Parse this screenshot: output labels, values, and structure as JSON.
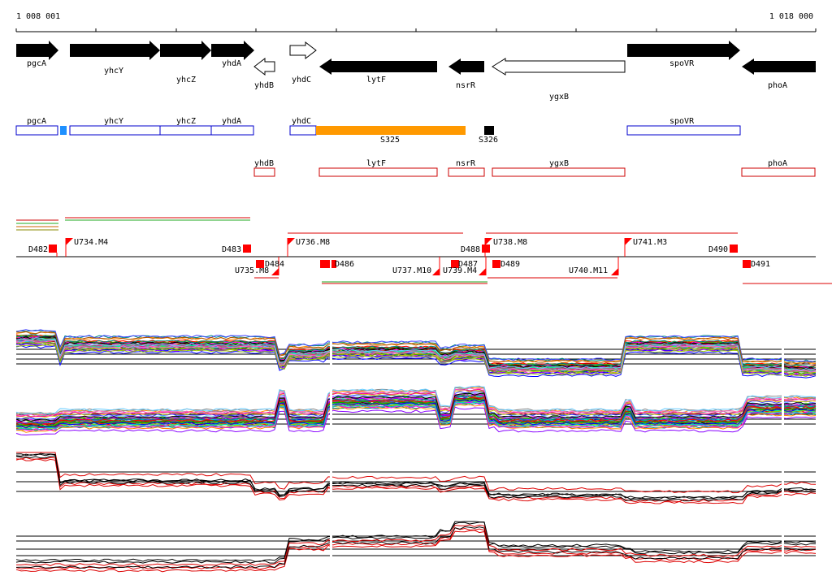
{
  "coordinates": {
    "start": "1 008 001",
    "end": "1 018 000"
  },
  "genes": [
    {
      "label": "pgcA",
      "dir": "fwd",
      "filled": true
    },
    {
      "label": "yhcY",
      "dir": "fwd",
      "filled": true
    },
    {
      "label": "yhcZ",
      "dir": "fwd",
      "filled": true
    },
    {
      "label": "yhdA",
      "dir": "fwd",
      "filled": true
    },
    {
      "label": "yhdB",
      "dir": "rev",
      "filled": false
    },
    {
      "label": "yhdC",
      "dir": "fwd",
      "filled": false
    },
    {
      "label": "lytF",
      "dir": "rev",
      "filled": true
    },
    {
      "label": "nsrR",
      "dir": "rev",
      "filled": true
    },
    {
      "label": "ygxB",
      "dir": "rev",
      "filled": false
    },
    {
      "label": "spoVR",
      "dir": "fwd",
      "filled": true
    },
    {
      "label": "phoA",
      "dir": "rev",
      "filled": true
    }
  ],
  "forward_annotations": [
    {
      "label": "pgcA"
    },
    {
      "label": "yhcY"
    },
    {
      "label": "yhcZ"
    },
    {
      "label": "yhdA"
    },
    {
      "label": "yhdC"
    },
    {
      "label": "spoVR"
    }
  ],
  "segments": [
    {
      "label": "S325",
      "color": "#ff9900"
    },
    {
      "label": "S326",
      "color": "#000000"
    }
  ],
  "reverse_annotations": [
    {
      "label": "yhdB"
    },
    {
      "label": "lytF"
    },
    {
      "label": "nsrR"
    },
    {
      "label": "ygxB"
    },
    {
      "label": "phoA"
    }
  ],
  "features": {
    "above": [
      {
        "label": "D482"
      },
      {
        "label": "U734.M4"
      },
      {
        "label": "D483"
      },
      {
        "label": "U736.M8"
      },
      {
        "label": "D488"
      },
      {
        "label": "U738.M8"
      },
      {
        "label": "U741.M3"
      },
      {
        "label": "D490"
      }
    ],
    "below": [
      {
        "label": "U735.M8"
      },
      {
        "label": "D484"
      },
      {
        "label": "D486"
      },
      {
        "label": "U737.M10"
      },
      {
        "label": "D487"
      },
      {
        "label": "U739.M4"
      },
      {
        "label": "D489"
      },
      {
        "label": "U740.M11"
      },
      {
        "label": "D491"
      }
    ]
  },
  "colors": {
    "gene_fill": "#000000",
    "forward_annotation": "#0000cc",
    "reverse_annotation": "#cc0000",
    "feature_marker": "#ff0000",
    "small_blue_block": "#1e90ff"
  }
}
